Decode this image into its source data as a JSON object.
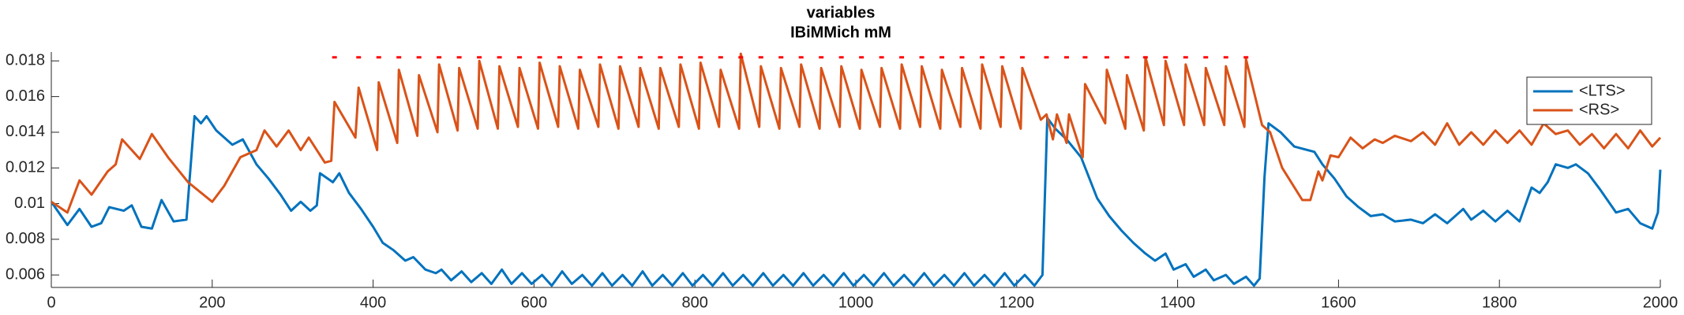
{
  "chart_data": {
    "type": "line",
    "title": "variables",
    "subtitle": "IBiMMich mM",
    "xlim": [
      0,
      2000
    ],
    "xticks": [
      0,
      200,
      400,
      600,
      800,
      1000,
      1200,
      1400,
      1600,
      1800,
      2000
    ],
    "ylim": [
      0.0053,
      0.0185
    ],
    "yticks": [
      0.006,
      0.008,
      0.01,
      0.012,
      0.014,
      0.016,
      0.018
    ],
    "grid": false,
    "legend_position": "upper right",
    "series": [
      {
        "name": "<LTS>",
        "color": "#0072BD",
        "x": [
          0,
          20,
          35,
          50,
          62,
          72,
          90,
          100,
          112,
          125,
          137,
          152,
          168,
          178,
          186,
          193,
          205,
          225,
          238,
          255,
          270,
          285,
          298,
          310,
          322,
          330,
          334,
          350,
          358,
          370,
          385,
          400,
          412,
          425,
          440,
          450,
          465,
          478,
          485,
          497,
          510,
          522,
          535,
          547,
          560,
          572,
          585,
          597,
          610,
          622,
          635,
          647,
          660,
          672,
          685,
          697,
          710,
          722,
          735,
          747,
          760,
          772,
          785,
          797,
          810,
          822,
          835,
          847,
          860,
          872,
          885,
          897,
          910,
          922,
          935,
          947,
          960,
          972,
          985,
          997,
          1010,
          1022,
          1035,
          1047,
          1060,
          1072,
          1085,
          1097,
          1110,
          1122,
          1135,
          1147,
          1160,
          1172,
          1185,
          1197,
          1210,
          1222,
          1232,
          1238,
          1248,
          1262,
          1280,
          1300,
          1315,
          1330,
          1345,
          1360,
          1372,
          1385,
          1395,
          1410,
          1420,
          1435,
          1445,
          1460,
          1470,
          1485,
          1495,
          1502,
          1508,
          1513,
          1528,
          1545,
          1570,
          1580,
          1595,
          1610,
          1625,
          1640,
          1655,
          1670,
          1690,
          1705,
          1720,
          1735,
          1755,
          1765,
          1780,
          1795,
          1810,
          1825,
          1840,
          1850,
          1860,
          1870,
          1885,
          1895,
          1910,
          1925,
          1945,
          1960,
          1975,
          1990,
          1997,
          2000
        ],
        "values": [
          0.0101,
          0.0088,
          0.0097,
          0.0087,
          0.0089,
          0.0098,
          0.0096,
          0.0099,
          0.0087,
          0.0086,
          0.0102,
          0.009,
          0.0091,
          0.0149,
          0.0145,
          0.0149,
          0.0141,
          0.0133,
          0.0136,
          0.0122,
          0.0114,
          0.0105,
          0.0096,
          0.0101,
          0.0096,
          0.0099,
          0.0117,
          0.0112,
          0.0117,
          0.0106,
          0.0097,
          0.0087,
          0.0078,
          0.0074,
          0.0068,
          0.007,
          0.0063,
          0.0061,
          0.0063,
          0.0057,
          0.0062,
          0.0056,
          0.0061,
          0.0055,
          0.0063,
          0.0055,
          0.0061,
          0.0055,
          0.006,
          0.0054,
          0.0062,
          0.0055,
          0.006,
          0.0054,
          0.0061,
          0.0054,
          0.006,
          0.0054,
          0.0062,
          0.0054,
          0.006,
          0.0054,
          0.0061,
          0.0054,
          0.006,
          0.0054,
          0.0061,
          0.0054,
          0.006,
          0.0054,
          0.0061,
          0.0054,
          0.006,
          0.0054,
          0.0061,
          0.0054,
          0.006,
          0.0054,
          0.0061,
          0.0054,
          0.006,
          0.0054,
          0.0061,
          0.0054,
          0.006,
          0.0054,
          0.0061,
          0.0054,
          0.006,
          0.0054,
          0.0061,
          0.0054,
          0.006,
          0.0054,
          0.0061,
          0.0054,
          0.006,
          0.0054,
          0.006,
          0.0148,
          0.0142,
          0.0136,
          0.0126,
          0.0103,
          0.0093,
          0.0085,
          0.0078,
          0.0072,
          0.0068,
          0.0072,
          0.0063,
          0.0066,
          0.0059,
          0.0063,
          0.0057,
          0.006,
          0.0055,
          0.0059,
          0.0054,
          0.0058,
          0.0115,
          0.0145,
          0.014,
          0.0132,
          0.0129,
          0.0122,
          0.0114,
          0.0104,
          0.0098,
          0.0093,
          0.0094,
          0.009,
          0.0091,
          0.0089,
          0.0094,
          0.0089,
          0.0097,
          0.0091,
          0.0096,
          0.009,
          0.0096,
          0.009,
          0.0109,
          0.0106,
          0.0112,
          0.0122,
          0.012,
          0.0122,
          0.0117,
          0.0108,
          0.0095,
          0.0097,
          0.0089,
          0.0086,
          0.0095,
          0.0119
        ]
      },
      {
        "name": "<RS>",
        "color": "#D95319",
        "x": [
          0,
          20,
          35,
          50,
          70,
          80,
          88,
          110,
          125,
          145,
          170,
          200,
          215,
          235,
          255,
          265,
          280,
          295,
          310,
          320,
          340,
          348,
          352,
          378,
          382,
          405,
          407,
          430,
          432,
          455,
          457,
          480,
          482,
          505,
          507,
          530,
          532,
          555,
          557,
          580,
          582,
          605,
          607,
          630,
          632,
          655,
          657,
          680,
          682,
          705,
          707,
          730,
          732,
          755,
          757,
          780,
          782,
          805,
          807,
          830,
          832,
          855,
          857,
          880,
          882,
          905,
          907,
          930,
          932,
          955,
          957,
          980,
          982,
          1005,
          1007,
          1030,
          1032,
          1055,
          1057,
          1080,
          1082,
          1105,
          1107,
          1130,
          1132,
          1155,
          1157,
          1180,
          1182,
          1205,
          1207,
          1230,
          1237,
          1245,
          1250,
          1262,
          1265,
          1282,
          1285,
          1310,
          1312,
          1335,
          1337,
          1358,
          1360,
          1383,
          1385,
          1408,
          1410,
          1433,
          1435,
          1458,
          1460,
          1483,
          1485,
          1505,
          1515,
          1530,
          1555,
          1565,
          1575,
          1580,
          1590,
          1600,
          1615,
          1630,
          1645,
          1655,
          1670,
          1690,
          1705,
          1720,
          1735,
          1750,
          1765,
          1780,
          1795,
          1810,
          1825,
          1840,
          1855,
          1870,
          1885,
          1900,
          1915,
          1930,
          1945,
          1960,
          1975,
          1990,
          2000
        ],
        "values": [
          0.0101,
          0.0095,
          0.0113,
          0.0105,
          0.0118,
          0.0122,
          0.0136,
          0.0125,
          0.0139,
          0.0126,
          0.0112,
          0.0101,
          0.011,
          0.0126,
          0.013,
          0.0141,
          0.0132,
          0.0141,
          0.013,
          0.0137,
          0.0123,
          0.0124,
          0.0157,
          0.0137,
          0.0165,
          0.013,
          0.0168,
          0.0134,
          0.0175,
          0.0138,
          0.0172,
          0.014,
          0.0178,
          0.0141,
          0.0176,
          0.0142,
          0.018,
          0.0142,
          0.0177,
          0.0143,
          0.0176,
          0.0142,
          0.0179,
          0.0143,
          0.0177,
          0.0142,
          0.0175,
          0.0143,
          0.0178,
          0.0142,
          0.0177,
          0.0143,
          0.0176,
          0.0142,
          0.0176,
          0.0143,
          0.0178,
          0.0142,
          0.0179,
          0.0143,
          0.0175,
          0.0142,
          0.0184,
          0.0143,
          0.0177,
          0.0142,
          0.0176,
          0.0143,
          0.0178,
          0.0142,
          0.0176,
          0.0143,
          0.0177,
          0.0142,
          0.0175,
          0.0143,
          0.0176,
          0.0142,
          0.0178,
          0.0143,
          0.0177,
          0.0142,
          0.0175,
          0.0143,
          0.0176,
          0.0142,
          0.0178,
          0.0143,
          0.0177,
          0.0142,
          0.0176,
          0.0147,
          0.015,
          0.0136,
          0.015,
          0.0134,
          0.015,
          0.0126,
          0.0167,
          0.0145,
          0.0175,
          0.0142,
          0.0172,
          0.0141,
          0.0182,
          0.0144,
          0.018,
          0.0144,
          0.0178,
          0.0144,
          0.0176,
          0.0144,
          0.0177,
          0.0143,
          0.0181,
          0.0144,
          0.014,
          0.012,
          0.0102,
          0.0102,
          0.0118,
          0.0113,
          0.0127,
          0.0126,
          0.0137,
          0.0131,
          0.0136,
          0.0134,
          0.0138,
          0.0135,
          0.014,
          0.0133,
          0.0145,
          0.0133,
          0.014,
          0.0133,
          0.0141,
          0.0134,
          0.0141,
          0.0133,
          0.0145,
          0.0139,
          0.0141,
          0.0133,
          0.0139,
          0.0131,
          0.0139,
          0.0131,
          0.0141,
          0.0132,
          0.0137
        ]
      }
    ],
    "event_markers": {
      "color": "#FF0000",
      "y": 0.0182,
      "x": [
        352,
        382,
        407,
        432,
        457,
        482,
        507,
        532,
        557,
        582,
        607,
        632,
        657,
        682,
        707,
        732,
        757,
        782,
        807,
        832,
        857,
        882,
        907,
        932,
        957,
        982,
        1007,
        1032,
        1057,
        1082,
        1107,
        1132,
        1157,
        1182,
        1207,
        1237,
        1262,
        1285,
        1312,
        1337,
        1360,
        1385,
        1410,
        1435,
        1460,
        1485
      ]
    }
  }
}
